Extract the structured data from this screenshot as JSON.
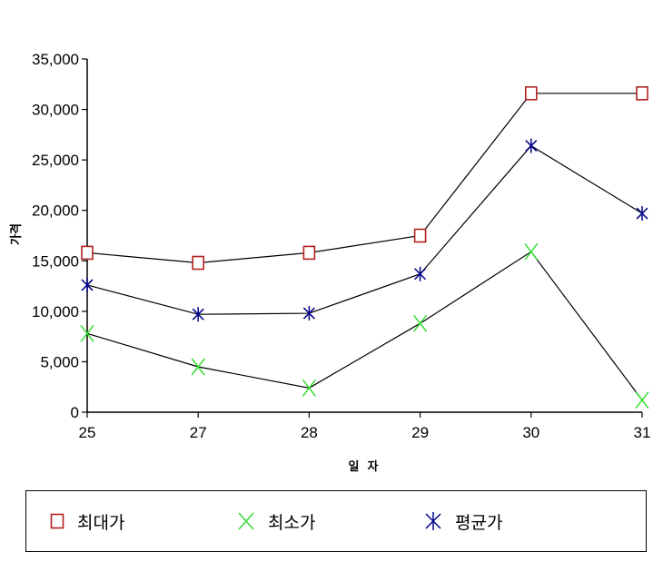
{
  "chart_data": {
    "type": "line",
    "title": "",
    "xlabel": "일  자",
    "ylabel": "가격",
    "categories": [
      "25",
      "27",
      "28",
      "29",
      "30",
      "31"
    ],
    "yticks": [
      "0",
      "5,000",
      "10,000",
      "15,000",
      "20,000",
      "25,000",
      "30,000",
      "35,000"
    ],
    "ylim": [
      0,
      35000
    ],
    "grid": false,
    "legend_position": "bottom",
    "series": [
      {
        "name": "최대가",
        "marker": "square",
        "color": "#b22222",
        "values": [
          15800,
          14800,
          15800,
          17500,
          31600,
          31600
        ]
      },
      {
        "name": "최소가",
        "marker": "x",
        "color": "#33dd33",
        "values": [
          7800,
          4500,
          2400,
          8800,
          15900,
          1200
        ]
      },
      {
        "name": "평균가",
        "marker": "asterisk",
        "color": "#00008b",
        "values": [
          12600,
          9700,
          9800,
          13700,
          26400,
          19700
        ]
      }
    ]
  }
}
